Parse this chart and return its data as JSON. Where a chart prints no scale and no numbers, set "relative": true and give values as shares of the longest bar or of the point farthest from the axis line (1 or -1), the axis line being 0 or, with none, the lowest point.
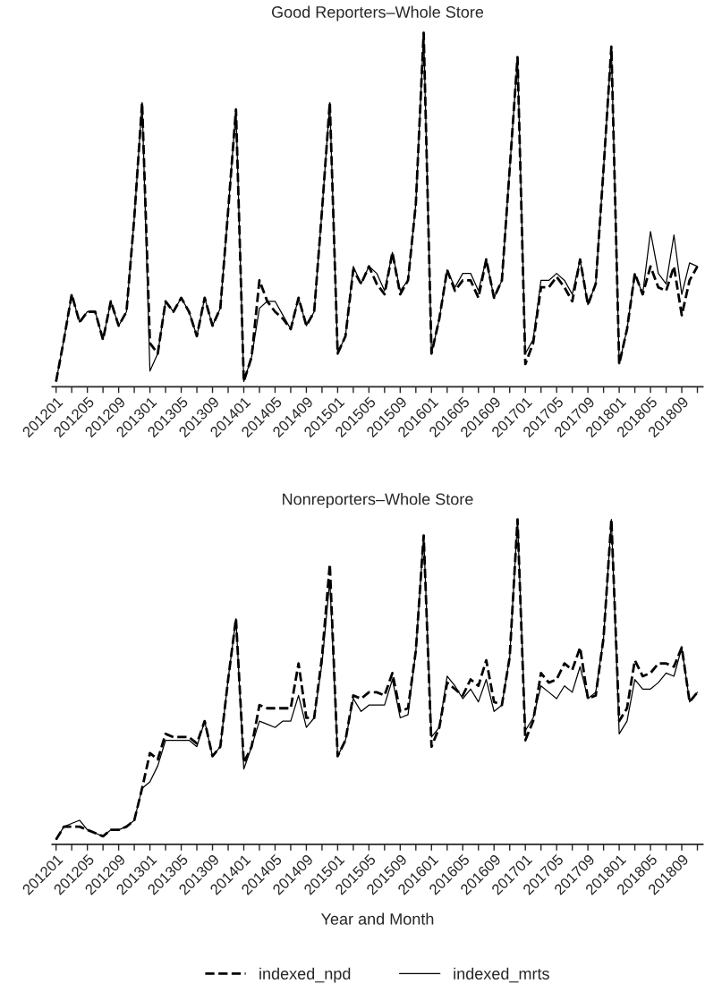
{
  "chart_data": [
    {
      "type": "line",
      "title": "Good Reporters–Whole Store",
      "relative": true,
      "legend": false,
      "grid": false,
      "categories": [
        "201201",
        null,
        null,
        null,
        "201205",
        null,
        null,
        null,
        "201209",
        null,
        null,
        null,
        "201301",
        null,
        null,
        null,
        "201305",
        null,
        null,
        null,
        "201309",
        null,
        null,
        null,
        "201401",
        null,
        null,
        null,
        "201405",
        null,
        null,
        null,
        "201409",
        null,
        null,
        null,
        "201501",
        null,
        null,
        null,
        "201505",
        null,
        null,
        null,
        "201509",
        null,
        null,
        null,
        "201601",
        null,
        null,
        null,
        "201605",
        null,
        null,
        null,
        "201609",
        null,
        null,
        null,
        "201701",
        null,
        null,
        null,
        "201705",
        null,
        null,
        null,
        "201709",
        null,
        null,
        null,
        "201801",
        null,
        null,
        null,
        "201805",
        null,
        null,
        null,
        "201809",
        null,
        null
      ],
      "series": [
        {
          "color": "#000000",
          "line_style": "dashed",
          "values": [
            0,
            0.12,
            0.25,
            0.17,
            0.2,
            0.2,
            0.12,
            0.23,
            0.16,
            0.2,
            0.47,
            0.8,
            0.11,
            0.08,
            0.23,
            0.2,
            0.24,
            0.2,
            0.13,
            0.24,
            0.16,
            0.21,
            0.49,
            0.78,
            0,
            0.07,
            0.29,
            0.23,
            0.2,
            0.18,
            0.15,
            0.24,
            0.16,
            0.2,
            0.49,
            0.8,
            0.08,
            0.13,
            0.32,
            0.28,
            0.33,
            0.28,
            0.25,
            0.37,
            0.25,
            0.29,
            0.51,
            1,
            0.08,
            0.18,
            0.32,
            0.26,
            0.29,
            0.29,
            0.24,
            0.35,
            0.24,
            0.29,
            0.61,
            0.93,
            0.05,
            0.11,
            0.27,
            0.27,
            0.3,
            0.27,
            0.23,
            0.35,
            0.22,
            0.28,
            0.61,
            0.96,
            0.05,
            0.15,
            0.31,
            0.25,
            0.33,
            0.27,
            0.26,
            0.33,
            0.19,
            0.29,
            0.33
          ]
        },
        {
          "color": "#000000",
          "line_style": "solid",
          "values": [
            0,
            0.12,
            0.25,
            0.17,
            0.2,
            0.2,
            0.12,
            0.23,
            0.16,
            0.2,
            0.47,
            0.8,
            0.03,
            0.08,
            0.23,
            0.2,
            0.24,
            0.2,
            0.13,
            0.24,
            0.16,
            0.21,
            0.49,
            0.78,
            0,
            0.07,
            0.21,
            0.23,
            0.23,
            0.19,
            0.15,
            0.24,
            0.16,
            0.2,
            0.49,
            0.8,
            0.08,
            0.13,
            0.33,
            0.28,
            0.33,
            0.31,
            0.26,
            0.37,
            0.26,
            0.29,
            0.51,
            1,
            0.08,
            0.18,
            0.32,
            0.27,
            0.31,
            0.31,
            0.26,
            0.35,
            0.24,
            0.29,
            0.61,
            0.93,
            0.08,
            0.12,
            0.29,
            0.29,
            0.31,
            0.29,
            0.25,
            0.35,
            0.22,
            0.28,
            0.61,
            0.96,
            0.05,
            0.15,
            0.31,
            0.25,
            0.43,
            0.31,
            0.28,
            0.42,
            0.25,
            0.34,
            0.33
          ]
        }
      ]
    },
    {
      "type": "line",
      "title": "Nonreporters–Whole Store",
      "relative": true,
      "legend": "bottom",
      "grid": false,
      "xlabel": "Year and Month",
      "categories": [
        "201201",
        null,
        null,
        null,
        "201205",
        null,
        null,
        null,
        "201209",
        null,
        null,
        null,
        "201301",
        null,
        null,
        null,
        "201305",
        null,
        null,
        null,
        "201309",
        null,
        null,
        null,
        "201401",
        null,
        null,
        null,
        "201405",
        null,
        null,
        null,
        "201409",
        null,
        null,
        null,
        "201501",
        null,
        null,
        null,
        "201505",
        null,
        null,
        null,
        "201509",
        null,
        null,
        null,
        "201601",
        null,
        null,
        null,
        "201605",
        null,
        null,
        null,
        "201609",
        null,
        null,
        null,
        "201701",
        null,
        null,
        null,
        "201705",
        null,
        null,
        null,
        "201709",
        null,
        null,
        null,
        "201801",
        null,
        null,
        null,
        "201805",
        null,
        null,
        null,
        "201809",
        null,
        null
      ],
      "series": [
        {
          "name": "indexed_npd",
          "color": "#000000",
          "line_style": "dashed",
          "values": [
            0,
            0.04,
            0.04,
            0.04,
            0.03,
            0.02,
            0.01,
            0.03,
            0.03,
            0.04,
            0.06,
            0.16,
            0.27,
            0.25,
            0.33,
            0.32,
            0.32,
            0.32,
            0.3,
            0.37,
            0.26,
            0.29,
            0.5,
            0.69,
            0.24,
            0.29,
            0.42,
            0.41,
            0.41,
            0.41,
            0.41,
            0.55,
            0.38,
            0.38,
            0.57,
            0.86,
            0.26,
            0.31,
            0.45,
            0.44,
            0.46,
            0.46,
            0.45,
            0.52,
            0.4,
            0.41,
            0.59,
            0.95,
            0.29,
            0.35,
            0.49,
            0.47,
            0.45,
            0.5,
            0.48,
            0.56,
            0.43,
            0.42,
            0.57,
            1,
            0.31,
            0.37,
            0.52,
            0.49,
            0.5,
            0.55,
            0.53,
            0.6,
            0.44,
            0.45,
            0.63,
            1,
            0.37,
            0.41,
            0.56,
            0.51,
            0.52,
            0.55,
            0.55,
            0.54,
            0.6,
            0.43,
            0.46
          ]
        },
        {
          "name": "indexed_mrts",
          "color": "#000000",
          "line_style": "solid",
          "values": [
            0,
            0.04,
            0.05,
            0.06,
            0.03,
            0.02,
            0.01,
            0.03,
            0.03,
            0.04,
            0.06,
            0.16,
            0.18,
            0.23,
            0.31,
            0.31,
            0.31,
            0.31,
            0.29,
            0.37,
            0.26,
            0.29,
            0.5,
            0.69,
            0.22,
            0.29,
            0.37,
            0.36,
            0.35,
            0.37,
            0.37,
            0.45,
            0.35,
            0.38,
            0.55,
            0.81,
            0.26,
            0.31,
            0.44,
            0.4,
            0.42,
            0.42,
            0.42,
            0.5,
            0.38,
            0.39,
            0.59,
            0.95,
            0.32,
            0.35,
            0.51,
            0.48,
            0.44,
            0.47,
            0.43,
            0.5,
            0.4,
            0.42,
            0.57,
            1,
            0.34,
            0.38,
            0.48,
            0.46,
            0.44,
            0.48,
            0.46,
            0.54,
            0.44,
            0.46,
            0.63,
            1,
            0.33,
            0.37,
            0.5,
            0.47,
            0.47,
            0.49,
            0.52,
            0.51,
            0.6,
            0.43,
            0.46
          ]
        }
      ]
    }
  ]
}
